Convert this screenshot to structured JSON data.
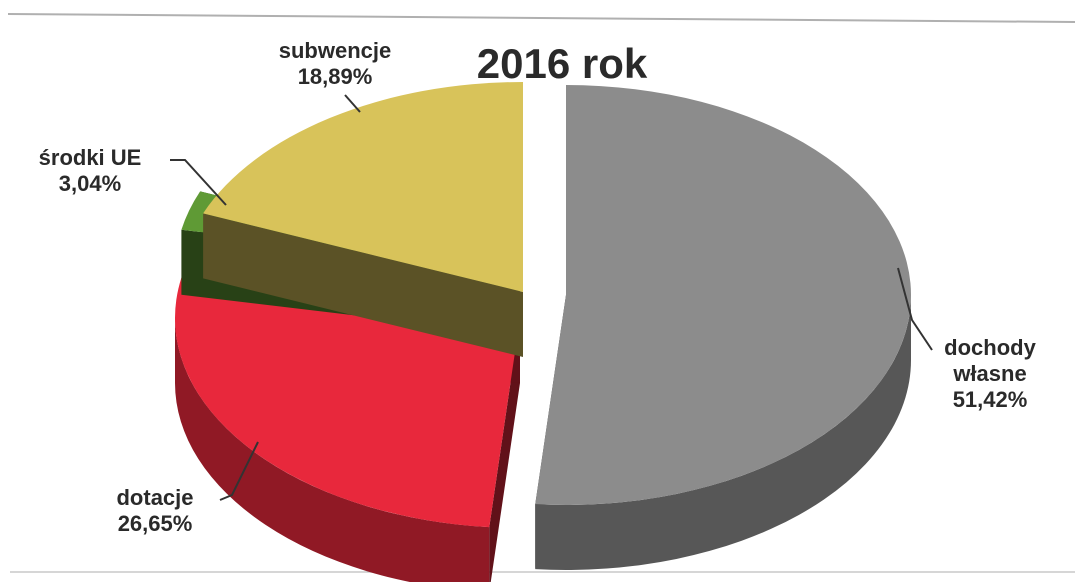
{
  "chart_data": {
    "type": "pie",
    "title": "2016 rok",
    "slices": [
      {
        "name": "dochody\nwłasne",
        "value": 51.42,
        "value_label": "51,42%",
        "color": "#8c8c8c"
      },
      {
        "name": "dotacje",
        "value": 26.65,
        "value_label": "26,65%",
        "color": "#e8283c"
      },
      {
        "name": "środki UE",
        "value": 3.04,
        "value_label": "3,04%",
        "color": "#5f9a35"
      },
      {
        "name": "subwencje",
        "value": 18.89,
        "value_label": "18,89%",
        "color": "#d8c35a"
      }
    ],
    "exploded": true,
    "style": "3d"
  }
}
